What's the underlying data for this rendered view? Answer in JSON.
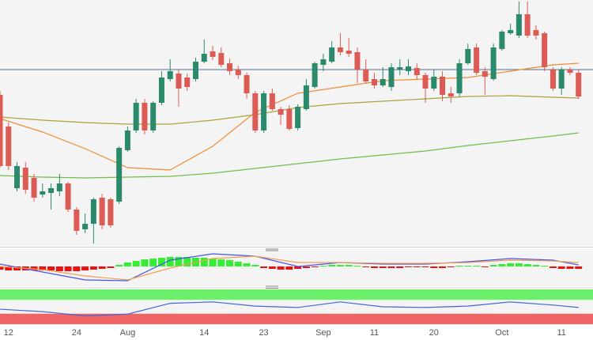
{
  "chart_data": [
    {
      "type": "candlestick",
      "categories": [
        null,
        "12",
        null,
        null,
        null,
        null,
        null,
        null,
        null,
        "24",
        null,
        null,
        null,
        null,
        null,
        "Aug",
        null,
        null,
        null,
        null,
        null,
        null,
        null,
        null,
        "14",
        null,
        null,
        null,
        null,
        null,
        null,
        "23",
        null,
        null,
        null,
        null,
        null,
        null,
        "Sep",
        null,
        null,
        null,
        null,
        null,
        "11",
        null,
        null,
        null,
        null,
        null,
        null,
        "20",
        null,
        null,
        null,
        null,
        null,
        null,
        null,
        "Oct",
        null,
        null,
        null,
        null,
        null,
        null,
        "11",
        null,
        null
      ],
      "open": [
        190,
        150,
        72,
        98,
        85,
        64,
        66,
        68,
        78,
        45,
        20,
        27,
        60,
        58,
        55,
        120,
        145,
        180,
        145,
        180,
        210,
        217,
        212,
        210,
        232,
        245,
        243,
        230,
        222,
        215,
        192,
        145,
        192,
        172,
        172,
        148,
        172,
        200,
        228,
        232,
        250,
        246,
        244,
        222,
        210,
        202,
        200,
        222,
        220,
        224,
        215,
        198,
        213,
        192,
        192,
        230,
        250,
        220,
        210,
        248,
        268,
        265,
        292,
        272,
        268,
        222,
        198,
        222,
        218
      ],
      "high": [
        195,
        155,
        105,
        105,
        90,
        78,
        78,
        90,
        80,
        48,
        40,
        60,
        65,
        60,
        125,
        150,
        185,
        185,
        182,
        220,
        235,
        222,
        217,
        237,
        260,
        252,
        250,
        236,
        227,
        218,
        195,
        195,
        198,
        175,
        177,
        178,
        210,
        232,
        242,
        258,
        268,
        262,
        250,
        235,
        218,
        225,
        230,
        235,
        235,
        230,
        218,
        222,
        220,
        200,
        235,
        255,
        255,
        225,
        255,
        272,
        280,
        308,
        308,
        278,
        270,
        225,
        225,
        225,
        222
      ],
      "low": [
        98,
        95,
        68,
        65,
        55,
        60,
        45,
        62,
        42,
        13,
        15,
        2,
        20,
        22,
        52,
        118,
        142,
        140,
        142,
        177,
        207,
        175,
        195,
        207,
        230,
        234,
        225,
        215,
        210,
        185,
        142,
        142,
        170,
        152,
        145,
        145,
        170,
        198,
        220,
        230,
        240,
        238,
        205,
        204,
        198,
        200,
        195,
        215,
        215,
        210,
        180,
        195,
        182,
        180,
        188,
        228,
        215,
        190,
        208,
        246,
        266,
        262,
        262,
        260,
        220,
        195,
        190,
        215,
        185
      ],
      "close": [
        100,
        100,
        100,
        70,
        60,
        68,
        72,
        78,
        45,
        18,
        27,
        58,
        25,
        25,
        123,
        145,
        180,
        145,
        180,
        212,
        220,
        198,
        200,
        232,
        242,
        238,
        228,
        220,
        215,
        192,
        145,
        192,
        172,
        165,
        147,
        175,
        202,
        230,
        235,
        250,
        244,
        242,
        222,
        207,
        202,
        210,
        225,
        225,
        226,
        215,
        198,
        213,
        190,
        188,
        230,
        248,
        218,
        213,
        250,
        270,
        272,
        292,
        265,
        265,
        225,
        198,
        222,
        218,
        188
      ],
      "up_color": "#2b8a6b",
      "down_color": "#dc5c55",
      "xlim": [
        0,
        69.7
      ],
      "ylim": [
        0,
        310
      ],
      "hline": 222,
      "hline_color": "#5a6f8c",
      "series": [
        {
          "color": "#f08c34",
          "x": [
            0,
            5,
            10,
            15,
            20,
            25,
            30,
            35,
            40,
            45,
            50,
            55,
            60,
            65,
            68
          ],
          "values": [
            160,
            143,
            122,
            98,
            95,
            125,
            168,
            192,
            200,
            208,
            210,
            212,
            220,
            228,
            230
          ]
        },
        {
          "color": "#a9a33e",
          "x": [
            0,
            5,
            10,
            15,
            20,
            25,
            30,
            35,
            40,
            45,
            50,
            55,
            60,
            65,
            68
          ],
          "values": [
            162,
            158,
            155,
            153,
            153,
            158,
            165,
            174,
            179,
            182,
            185,
            188,
            189,
            187,
            186
          ]
        },
        {
          "color": "#6cbf47",
          "x": [
            0,
            5,
            10,
            15,
            20,
            25,
            30,
            35,
            40,
            45,
            50,
            55,
            60,
            65,
            68
          ],
          "values": [
            88,
            86,
            85,
            86,
            87,
            91,
            97,
            103,
            109,
            114,
            119,
            126,
            132,
            138,
            142
          ]
        }
      ]
    },
    {
      "type": "macd",
      "values": [
        -4,
        -5,
        -5,
        -5,
        -5,
        -5,
        -5,
        -6,
        -6,
        -6,
        -5,
        -4,
        -3,
        -2,
        2,
        5,
        7,
        9,
        10,
        11,
        12,
        12,
        12,
        11,
        11,
        10,
        9,
        8,
        6,
        4,
        2,
        -2,
        -3,
        -4,
        -4,
        -3,
        -2,
        -1,
        1,
        2,
        2,
        2,
        1,
        -1,
        -2,
        -2,
        -2,
        -2,
        -1,
        -1,
        -1,
        -2,
        -2,
        -1,
        1,
        1,
        1,
        -1,
        2,
        3,
        4,
        4,
        3,
        2,
        1,
        -2,
        -3,
        -3,
        -3
      ],
      "up_color": "#33ee33",
      "down_color": "#ee1111",
      "xlim": [
        0,
        69.7
      ],
      "ylim": [
        -24,
        23
      ],
      "series": [
        {
          "color": "#4455ee",
          "x": [
            0,
            5,
            10,
            15,
            20,
            25,
            30,
            35,
            40,
            45,
            50,
            55,
            60,
            65,
            68
          ],
          "values": [
            3,
            -7,
            -17,
            -18,
            8,
            16,
            13,
            0,
            5,
            3,
            3,
            6,
            10,
            8,
            2
          ]
        },
        {
          "color": "#f0a050",
          "x": [
            0,
            5,
            10,
            15,
            20,
            25,
            30,
            35,
            40,
            45,
            50,
            55,
            60,
            65,
            68
          ],
          "values": [
            0,
            -4,
            -12,
            -17,
            -2,
            10,
            13,
            5,
            5,
            4,
            4,
            5,
            8,
            7,
            5
          ]
        }
      ]
    },
    {
      "type": "line",
      "xlim": [
        0,
        69.7
      ],
      "ylim": [
        0,
        100
      ],
      "bands": [
        {
          "range": [
            70,
            100
          ],
          "color": "#6cf06c"
        },
        {
          "range": [
            0,
            30
          ],
          "color": "#f06464"
        }
      ],
      "series": [
        {
          "color": "#4466dd",
          "x": [
            0,
            5,
            10,
            15,
            20,
            25,
            30,
            35,
            40,
            45,
            50,
            55,
            60,
            65,
            68
          ],
          "values": [
            43,
            36,
            24,
            29,
            60,
            64,
            52,
            48,
            64,
            50,
            48,
            52,
            64,
            55,
            48
          ]
        }
      ]
    }
  ]
}
